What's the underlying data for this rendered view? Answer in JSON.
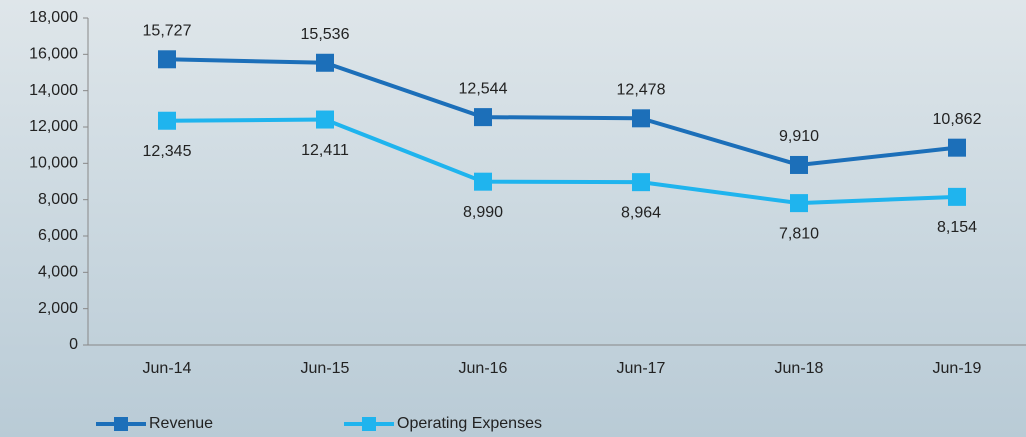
{
  "chart_data": {
    "type": "line",
    "categories": [
      "Jun-14",
      "Jun-15",
      "Jun-16",
      "Jun-17",
      "Jun-18",
      "Jun-19"
    ],
    "series": [
      {
        "name": "Revenue",
        "color": "#1c6fb9",
        "values": [
          15727,
          15536,
          12544,
          12478,
          9910,
          10862
        ],
        "value_labels": [
          "15,727",
          "15,536",
          "12,544",
          "12,478",
          "9,910",
          "10,862"
        ]
      },
      {
        "name": "Operating Expenses",
        "color": "#1fb4ee",
        "values": [
          12345,
          12411,
          8990,
          8964,
          7810,
          8154
        ],
        "value_labels": [
          "12,345",
          "12,411",
          "8,990",
          "8,964",
          "7,810",
          "8,154"
        ]
      }
    ],
    "ylim": [
      0,
      18000
    ],
    "yticks": [
      0,
      {
        "value": 2000,
        "label": "2,000"
      },
      {
        "value": 4000,
        "label": "4,000"
      },
      {
        "value": 6000,
        "label": "6,000"
      },
      {
        "value": 8000,
        "label": "8,000"
      },
      {
        "value": 10000,
        "label": "10,000"
      },
      {
        "value": 12000,
        "label": "12,000"
      },
      {
        "value": 14000,
        "label": "14,000"
      },
      {
        "value": 16000,
        "label": "16,000"
      },
      {
        "value": 18000,
        "label": "18,000"
      }
    ],
    "grid": false,
    "legend": "bottom"
  }
}
